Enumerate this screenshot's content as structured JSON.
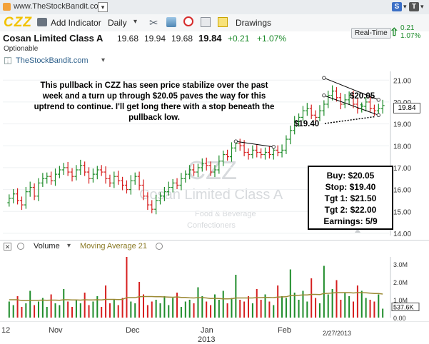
{
  "topbar": {
    "site_title": "www.TheStockBandit.com",
    "s_badge": "S",
    "t_badge": "T"
  },
  "toolbar": {
    "symbol": "CZZ",
    "add_indicator": "Add Indicator",
    "interval": "Daily",
    "drawings": "Drawings",
    "realtime": "Real-Time"
  },
  "quote": {
    "name": "Cosan Limited Class A",
    "open": "19.68",
    "high": "19.94",
    "low": "19.68",
    "last": "19.84",
    "change": "+0.21",
    "change_pct": "+1.07%",
    "small_change": "0.21",
    "small_pct": "1.07%",
    "optionable": "Optionable",
    "source": "TheStockBandit.com"
  },
  "annotation": {
    "text": "This pullback in CZZ has seen price stabilize over the past week and a turn up through $20.05 paves the way for this uptrend to continue.  I'll get long there with a stop beneath the pullback low.",
    "entry_label": "$20.05",
    "stop_label": "$19.40"
  },
  "trade_box": {
    "buy": "Buy: $20.05",
    "stop": "Stop: $19.40",
    "tgt1": "Tgt 1: $21.50",
    "tgt2": "Tgt 2: $22.00",
    "earnings": "Earnings: 5/9"
  },
  "watermark": {
    "symbol": "CZZ",
    "name": "Cosan Limited Class A",
    "industry": "Food & Beverage",
    "sub_industry": "Confectioners"
  },
  "volume_panel": {
    "label": "Volume",
    "ma_label": "Moving Average 21",
    "last_value": "537.6K",
    "y_ticks": [
      "3.0M",
      "2.0M",
      "1.0M",
      "0.00"
    ]
  },
  "price_axis": {
    "ticks": [
      "21.00",
      "20.00",
      "19.00",
      "18.00",
      "17.00",
      "16.00",
      "15.00",
      "14.00"
    ],
    "last_label": "19.84"
  },
  "x_axis": {
    "labels": [
      "12",
      "Nov",
      "Dec",
      "Jan",
      "2013",
      "Feb",
      "2/27/2013"
    ]
  },
  "chart_data": {
    "type": "candlestick",
    "x_labels": [
      "Nov",
      "Dec",
      "Jan",
      "Feb"
    ],
    "ylim": [
      13.9,
      21.4
    ],
    "closes": [
      15.6,
      15.8,
      15.5,
      15.3,
      15.9,
      16.1,
      15.7,
      16.3,
      16.5,
      16.6,
      16.4,
      16.7,
      16.9,
      17.0,
      16.8,
      16.6,
      16.9,
      17.1,
      16.8,
      16.5,
      16.7,
      16.9,
      16.8,
      16.5,
      16.3,
      16.6,
      16.4,
      16.2,
      16.0,
      16.4,
      16.6,
      16.2,
      15.7,
      15.3,
      15.1,
      15.5,
      15.7,
      15.9,
      16.1,
      16.3,
      16.2,
      16.5,
      16.7,
      16.9,
      16.8,
      17.0,
      17.2,
      17.1,
      16.8,
      16.9,
      17.3,
      17.6,
      17.5,
      17.9,
      18.1,
      18.0,
      17.7,
      17.6,
      17.8,
      17.7,
      17.6,
      17.7,
      17.6,
      17.8,
      17.7,
      17.8,
      18.3,
      18.7,
      19.1,
      19.3,
      19.6,
      19.7,
      19.4,
      19.3,
      19.6,
      19.9,
      20.3,
      20.5,
      20.2,
      19.9,
      20.1,
      20.3,
      19.9,
      19.7,
      19.8,
      20.0,
      19.7,
      19.6,
      19.7,
      19.84
    ],
    "volume_millions": [
      0.9,
      0.7,
      1.2,
      0.6,
      0.8,
      1.5,
      0.7,
      0.9,
      1.1,
      0.6,
      1.3,
      0.8,
      0.7,
      1.6,
      0.9,
      0.6,
      1.0,
      0.8,
      1.4,
      0.7,
      0.9,
      1.2,
      0.6,
      1.8,
      0.8,
      1.0,
      0.7,
      1.1,
      3.4,
      0.9,
      0.8,
      2.0,
      1.3,
      0.7,
      0.9,
      1.0,
      0.8,
      1.2,
      0.7,
      1.1,
      1.4,
      0.6,
      0.9,
      1.0,
      0.8,
      1.7,
      1.2,
      0.9,
      0.7,
      1.3,
      1.0,
      1.5,
      0.8,
      1.1,
      2.4,
      1.0,
      0.9,
      1.2,
      0.8,
      1.6,
      1.0,
      1.3,
      0.9,
      0.7,
      1.8,
      1.2,
      1.1,
      2.7,
      1.4,
      1.0,
      1.5,
      0.9,
      2.2,
      1.1,
      0.8,
      2.9,
      1.3,
      1.6,
      2.1,
      1.0,
      1.4,
      1.2,
      0.9,
      1.8,
      1.5,
      1.1,
      1.0,
      0.9,
      1.3,
      0.5
    ],
    "moving_average_21_millions": [
      1.0,
      1.0,
      1.0,
      0.95,
      0.95,
      0.96,
      0.97,
      0.97,
      0.98,
      0.97,
      0.98,
      0.98,
      0.97,
      1.0,
      1.0,
      0.99,
      0.99,
      0.98,
      1.0,
      0.99,
      0.99,
      1.0,
      0.99,
      1.02,
      1.02,
      1.02,
      1.01,
      1.02,
      1.12,
      1.12,
      1.12,
      1.17,
      1.18,
      1.18,
      1.18,
      1.17,
      1.17,
      1.16,
      1.15,
      1.14,
      1.16,
      1.13,
      1.13,
      1.11,
      1.1,
      1.12,
      1.12,
      1.1,
      1.07,
      1.08,
      1.07,
      1.05,
      1.05,
      1.06,
      1.1,
      1.1,
      1.1,
      1.1,
      1.1,
      1.12,
      1.12,
      1.13,
      1.13,
      1.12,
      1.15,
      1.16,
      1.17,
      1.23,
      1.24,
      1.25,
      1.27,
      1.27,
      1.3,
      1.3,
      1.29,
      1.35,
      1.36,
      1.38,
      1.4,
      1.4,
      1.4,
      1.4,
      1.38,
      1.4,
      1.4,
      1.39,
      1.37,
      1.35,
      1.35,
      1.32
    ]
  }
}
